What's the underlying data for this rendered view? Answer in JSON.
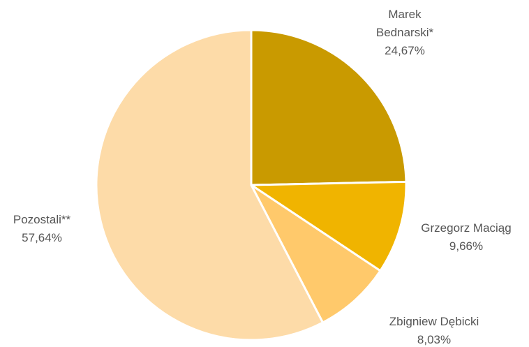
{
  "chart_data": {
    "type": "pie",
    "categories": [
      "Marek Bednarski*",
      "Grzegorz Maciąg",
      "Zbigniew Dębicki",
      "Pozostali**"
    ],
    "values": [
      24.67,
      9.66,
      8.03,
      57.64
    ],
    "value_labels": [
      "24,67%",
      "9,66%",
      "8,03%",
      "57,64%"
    ],
    "colors": [
      "#C99A00",
      "#F0B400",
      "#FFC96B",
      "#FDDBA8"
    ]
  }
}
